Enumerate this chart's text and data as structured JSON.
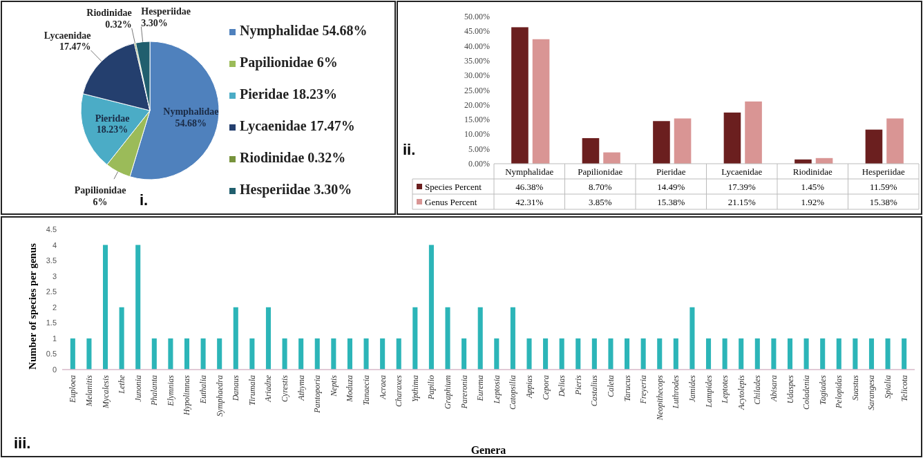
{
  "chart_data": [
    {
      "type": "pie",
      "categories": [
        "Nymphalidae",
        "Papilionidae",
        "Pieridae",
        "Lycaenidae",
        "Riodinidae",
        "Hesperiidae"
      ],
      "values": [
        54.68,
        6,
        18.23,
        17.47,
        0.32,
        3.3
      ],
      "value_labels": [
        "54.68%",
        "6%",
        "18.23%",
        "17.47%",
        "0.32%",
        "3.30%"
      ],
      "colors": [
        "#4f81bd",
        "#9bbb59",
        "#4bacc6",
        "#243f6e",
        "#77933c",
        "#215f6e"
      ],
      "legend": "right",
      "annotations": [
        "i."
      ]
    },
    {
      "type": "bar",
      "categories": [
        "Nymphalidae",
        "Papilionidae",
        "Pieridae",
        "Lycaenidae",
        "Riodinidae",
        "Hesperiidae"
      ],
      "series": [
        {
          "name": "Species Percent",
          "color": "#6b1f1f",
          "values": [
            46.38,
            8.7,
            14.49,
            17.39,
            1.45,
            11.59
          ],
          "value_labels": [
            "46.38%",
            "8.70%",
            "14.49%",
            "17.39%",
            "1.45%",
            "11.59%"
          ]
        },
        {
          "name": "Genus Percent",
          "color": "#d99594",
          "values": [
            42.31,
            3.85,
            15.38,
            21.15,
            1.92,
            15.38
          ],
          "value_labels": [
            "42.31%",
            "3.85%",
            "15.38%",
            "21.15%",
            "1.92%",
            "15.38%"
          ]
        }
      ],
      "ylim": [
        0,
        50
      ],
      "yticks": [
        {
          "value": 0,
          "label": "0.00%"
        },
        {
          "value": 5,
          "label": "5.00%"
        },
        {
          "value": 10,
          "label": "10.00%"
        },
        {
          "value": 15,
          "label": "15.00%"
        },
        {
          "value": 20,
          "label": "20.00%"
        },
        {
          "value": 25,
          "label": "25.00%"
        },
        {
          "value": 30,
          "label": "30.00%"
        },
        {
          "value": 35,
          "label": "35.00%"
        },
        {
          "value": 40,
          "label": "40.00%"
        },
        {
          "value": 45,
          "label": "45.00%"
        },
        {
          "value": 50,
          "label": "50.00%"
        }
      ],
      "legend": "bottom left",
      "annotations": [
        "ii."
      ]
    },
    {
      "type": "bar",
      "categories": [
        "Euploea",
        "Melanitis",
        "Mycalesis",
        "Lethe",
        "Junonia",
        "Phalanta",
        "Elymnias",
        "Hypolimnas",
        "Euthalia",
        "Symphaedra",
        "Danaus",
        "Tirumala",
        "Ariadne",
        "Cyrestis",
        "Athyma",
        "Pantoporia",
        "Neptis",
        "Moduza",
        "Tanaecia",
        "Acraea",
        "Charaxes",
        "Ypthima",
        "Papilio",
        "Graphium",
        "Pareronia",
        "Eurema",
        "Leptosia",
        "Catopsilia",
        "Appias",
        "Cepora",
        "Delias",
        "Pieris",
        "Castalius",
        "Caleta",
        "Tarucus",
        "Freyeria",
        "Neopithecops",
        "Luthrodes",
        "Jamides",
        "Lampides",
        "Leptotes",
        "Acytolepis",
        "Chilades",
        "Abisara",
        "Udaspes",
        "Coladenia",
        "Tagiades",
        "Pelopidas",
        "Suastus",
        "Sarangesa",
        "Spialia",
        "Telicota"
      ],
      "values": [
        1,
        1,
        4,
        2,
        4,
        1,
        1,
        1,
        1,
        1,
        2,
        1,
        2,
        1,
        1,
        1,
        1,
        1,
        1,
        1,
        1,
        2,
        4,
        2,
        1,
        2,
        1,
        2,
        1,
        1,
        1,
        1,
        1,
        1,
        1,
        1,
        1,
        1,
        2,
        1,
        1,
        1,
        1,
        1,
        1,
        1,
        1,
        1,
        1,
        1,
        1,
        1
      ],
      "color": "#2cb5b8",
      "ylim": [
        0,
        4.5
      ],
      "yticks": [
        0,
        0.5,
        1,
        1.5,
        2,
        2.5,
        3,
        3.5,
        4,
        4.5
      ],
      "xlabel": "Genera",
      "ylabel": "Number of species per genus",
      "annotations": [
        "iii."
      ]
    }
  ]
}
